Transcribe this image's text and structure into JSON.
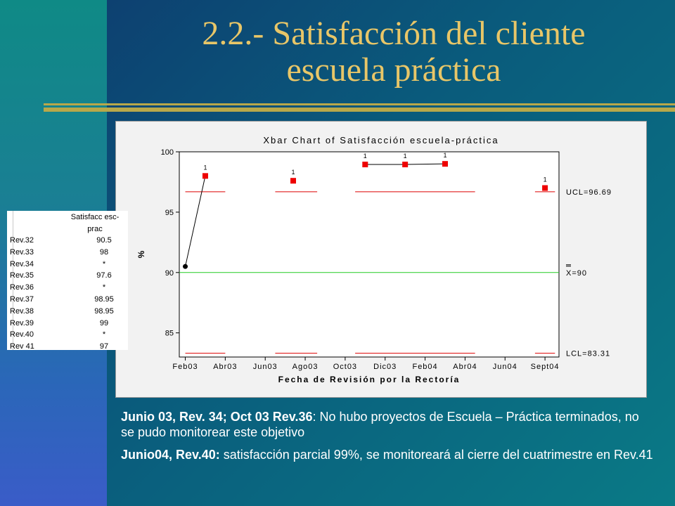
{
  "slide": {
    "title_line1": "2.2.- Satisfacción del cliente",
    "title_line2": "escuela práctica"
  },
  "table": {
    "header_line1": "Satisfacc esc-",
    "header_line2": "prac",
    "rows": [
      {
        "label": "Rev.32",
        "value": "90.5"
      },
      {
        "label": "Rev.33",
        "value": "98"
      },
      {
        "label": "Rev.34",
        "value": "*"
      },
      {
        "label": "Rev.35",
        "value": "97.6"
      },
      {
        "label": "Rev.36",
        "value": "*"
      },
      {
        "label": "Rev.37",
        "value": "98.95"
      },
      {
        "label": "Rev.38",
        "value": "98.95"
      },
      {
        "label": "Rev.39",
        "value": "99"
      },
      {
        "label": "Rev.40",
        "value": "*"
      },
      {
        "label": "Rev 41",
        "value": "97"
      }
    ]
  },
  "notes": {
    "note1_bold": "Junio 03, Rev. 34; Oct 03 Rev.36",
    "note1_text": ": No hubo proyectos de Escuela – Práctica terminados, no se pudo monitorear este objetivo",
    "note2_bold": "Junio04, Rev.40:",
    "note2_text": " satisfacción parcial 99%, se monitoreará al cierre del cuatrimestre en Rev.41"
  },
  "chart_data": {
    "type": "line",
    "title": "Xbar Chart of Satisfacción  escuela-práctica",
    "xlabel": "Fecha de Revisión por la Rectoría",
    "ylabel": "%",
    "ylim": [
      83,
      100
    ],
    "yticks": [
      85,
      90,
      95,
      100
    ],
    "x_tick_labels": [
      "Feb03",
      "Abr03",
      "Jun03",
      "Ago03",
      "Oct03",
      "Dic03",
      "Feb04",
      "Abr04",
      "Jun04",
      "Sept04"
    ],
    "x_tick_positions": [
      1,
      2,
      3,
      4,
      5,
      6,
      7,
      8,
      9,
      10
    ],
    "points": [
      {
        "x": 1,
        "y": 90.5,
        "flag": ""
      },
      {
        "x": 1.5,
        "y": 98,
        "flag": "1"
      },
      {
        "x": 2,
        "y": null,
        "flag": ""
      },
      {
        "x": 3.7,
        "y": 97.6,
        "flag": "1"
      },
      {
        "x": 4,
        "y": null,
        "flag": ""
      },
      {
        "x": 5.5,
        "y": 98.95,
        "flag": "1"
      },
      {
        "x": 6.5,
        "y": 98.95,
        "flag": "1"
      },
      {
        "x": 7.5,
        "y": 99,
        "flag": "1"
      },
      {
        "x": 8,
        "y": null,
        "flag": ""
      },
      {
        "x": 10,
        "y": 97,
        "flag": "1"
      }
    ],
    "center_line": 90,
    "ucl": 96.69,
    "lcl": 83.31,
    "limit_segments": [
      [
        1.0,
        2.0
      ],
      [
        3.25,
        4.3
      ],
      [
        5.25,
        8.25
      ],
      [
        9.75,
        10.25
      ]
    ],
    "limit_labels": {
      "ucl": "UCL=96.69",
      "center": "X=90",
      "lcl": "LCL=83.31"
    },
    "colors": {
      "point_in": "#000000",
      "point_out": "#ee0000",
      "limits": "#dd0000",
      "center": "#22cc22",
      "line": "#000000"
    }
  }
}
